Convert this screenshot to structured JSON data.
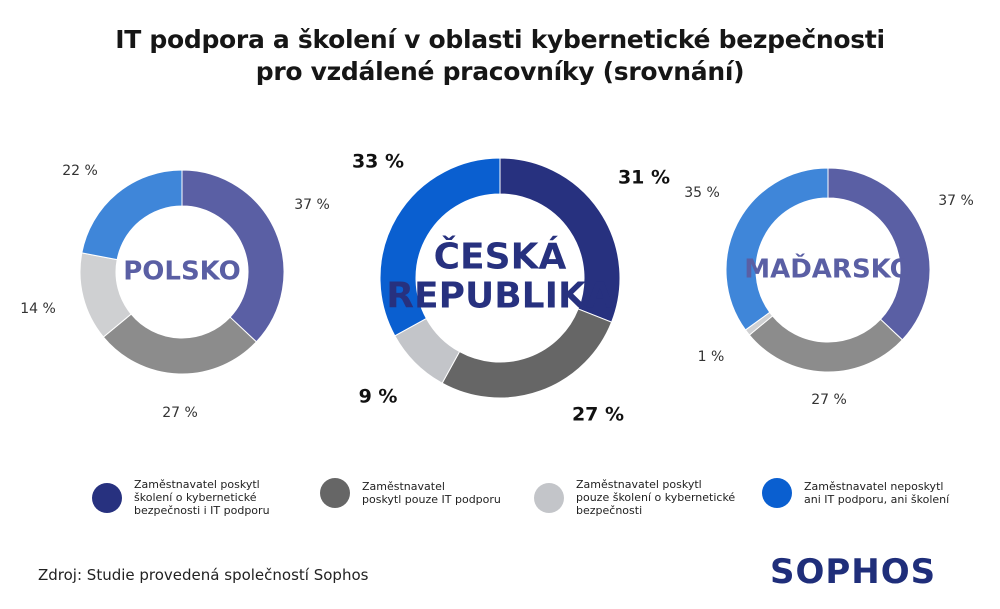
{
  "title": {
    "line1": "IT podpora a školení v oblasti kybernetické bezpečnosti",
    "line2": "pro vzdálené pracovníky (srovnání)"
  },
  "chart_data": [
    {
      "type": "pie",
      "variant": "donut",
      "title": "POLSKO",
      "categories": [
        "Zaměstnavatel poskytl školení o kybernetické bezpečnosti i IT podporu",
        "Zaměstnavatel poskytl pouze IT podporu",
        "Zaměstnavatel poskytl pouze školení o kybernetické bezpečnosti",
        "Zaměstnavatel neposkytl ani IT podporu, ani školení"
      ],
      "values": [
        37,
        27,
        14,
        22
      ],
      "labels": [
        "37 %",
        "27 %",
        "14 %",
        "22 %"
      ],
      "colors": [
        "#5a5fa4",
        "#8c8c8c",
        "#cfd0d2",
        "#3f86d9"
      ]
    },
    {
      "type": "pie",
      "variant": "donut",
      "title": "ČESKÁ REPUBLIKA",
      "title_lines": [
        "ČESKÁ",
        "REPUBLIKA"
      ],
      "categories": [
        "Zaměstnavatel poskytl školení o kybernetické bezpečnosti i IT podporu",
        "Zaměstnavatel poskytl pouze IT podporu",
        "Zaměstnavatel poskytl pouze školení o kybernetické bezpečnosti",
        "Zaměstnavatel neposkytl ani IT podporu, ani školení"
      ],
      "values": [
        31,
        27,
        9,
        33
      ],
      "labels": [
        "31 %",
        "27 %",
        "9 %",
        "33 %"
      ],
      "colors": [
        "#27317f",
        "#666666",
        "#c3c5c9",
        "#0a5fd0"
      ]
    },
    {
      "type": "pie",
      "variant": "donut",
      "title": "MAĎARSKO",
      "categories": [
        "Zaměstnavatel poskytl školení o kybernetické bezpečnosti i IT podporu",
        "Zaměstnavatel poskytl pouze IT podporu",
        "Zaměstnavatel poskytl pouze školení o kybernetické bezpečnosti",
        "Zaměstnavatel neposkytl ani IT podporu, ani školení"
      ],
      "values": [
        37,
        27,
        1,
        35
      ],
      "labels": [
        "37 %",
        "27 %",
        "1 %",
        "35 %"
      ],
      "colors": [
        "#5a5fa4",
        "#8c8c8c",
        "#cfd0d2",
        "#3f86d9"
      ]
    }
  ],
  "legend": [
    {
      "lines": [
        "Zaměstnavatel poskytl",
        "školení o kybernetické",
        "bezpečnosti i IT podporu"
      ],
      "color": "#27317f"
    },
    {
      "lines": [
        "Zaměstnavatel",
        "poskytl pouze IT podporu"
      ],
      "color": "#666666"
    },
    {
      "lines": [
        "Zaměstnavatel poskytl",
        "pouze školení o kybernetické",
        "bezpečnosti"
      ],
      "color": "#c3c5c9"
    },
    {
      "lines": [
        "Zaměstnavatel neposkytl",
        "ani IT podporu, ani školení"
      ],
      "color": "#0a5fd0"
    }
  ],
  "source": "Zdroj: Studie provedená společností Sophos",
  "logo": "SOPHOS",
  "center_label_color": "#5a5fa4",
  "center_label_color_big": "#27317f"
}
